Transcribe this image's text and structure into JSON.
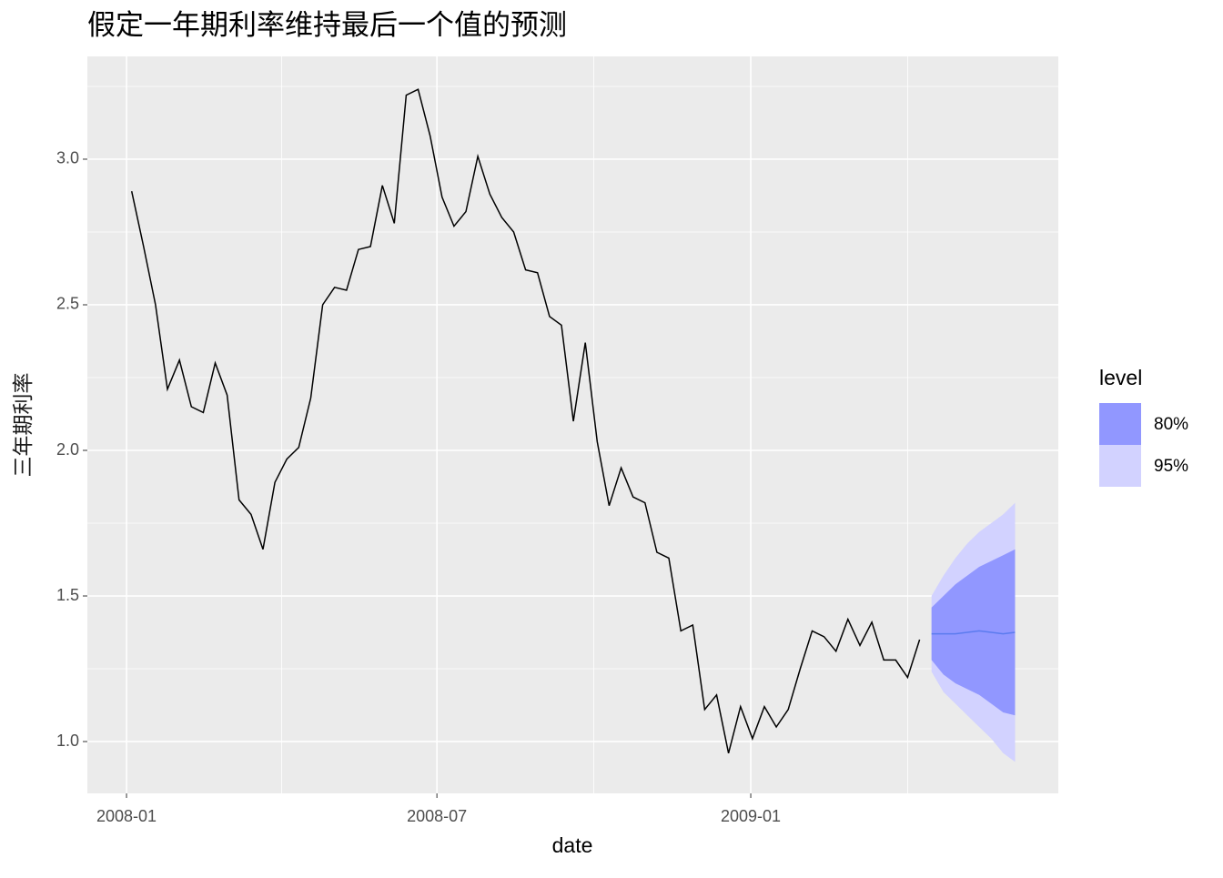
{
  "chart_data": {
    "type": "line",
    "title": "假定一年期利率维持最后一个值的预测",
    "x_label": "date",
    "y_label": "三年期利率",
    "legend_title": "level",
    "xlim": [
      -3.28,
      78.05
    ],
    "ylim": [
      0.822,
      3.353
    ],
    "xticks": [
      {
        "value": 0,
        "label": "2008-01"
      },
      {
        "value": 26,
        "label": "2008-07"
      },
      {
        "value": 52.29,
        "label": "2009-01"
      }
    ],
    "yticks": [
      {
        "value": 1,
        "label": "1.0"
      },
      {
        "value": 1.5,
        "label": "1.5"
      },
      {
        "value": 2,
        "label": "2.0"
      },
      {
        "value": 2.5,
        "label": "2.5"
      },
      {
        "value": 3,
        "label": "3.0"
      }
    ],
    "grid": true,
    "x": [
      0.43,
      1.43,
      2.43,
      3.43,
      4.43,
      5.43,
      6.43,
      7.43,
      8.43,
      9.43,
      10.43,
      11.43,
      12.43,
      13.43,
      14.43,
      15.43,
      16.43,
      17.43,
      18.43,
      19.43,
      20.43,
      21.43,
      22.43,
      23.43,
      24.43,
      25.43,
      26.43,
      27.43,
      28.43,
      29.43,
      30.43,
      31.43,
      32.43,
      33.43,
      34.43,
      35.43,
      36.43,
      37.43,
      38.43,
      39.43,
      40.43,
      41.43,
      42.43,
      43.43,
      44.43,
      45.43,
      46.43,
      47.43,
      48.43,
      49.43,
      50.43,
      51.43,
      52.43,
      53.43,
      54.43,
      55.43,
      56.43,
      57.43,
      58.43,
      59.43,
      60.43,
      61.43,
      62.43,
      63.43,
      64.43,
      65.43,
      66.43
    ],
    "series": [
      {
        "color": "#000000",
        "values": [
          2.89,
          2.7,
          2.5,
          2.21,
          2.31,
          2.15,
          2.13,
          2.3,
          2.19,
          1.83,
          1.78,
          1.66,
          1.89,
          1.97,
          2.01,
          2.18,
          2.5,
          2.56,
          2.55,
          2.69,
          2.7,
          2.91,
          2.78,
          3.22,
          3.24,
          3.08,
          2.87,
          2.77,
          2.82,
          3.01,
          2.88,
          2.8,
          2.75,
          2.62,
          2.61,
          2.46,
          2.43,
          2.1,
          2.37,
          2.03,
          1.81,
          1.94,
          1.84,
          1.82,
          1.65,
          1.63,
          1.38,
          1.4,
          1.11,
          1.16,
          0.96,
          1.12,
          1.01,
          1.12,
          1.05,
          1.11,
          1.25,
          1.38,
          1.36,
          1.31,
          1.42,
          1.33,
          1.41,
          1.28,
          1.28,
          1.22,
          1.35
        ]
      }
    ],
    "forecast": {
      "color": "#5b7bef",
      "x": [
        67.43,
        68.43,
        69.43,
        70.43,
        71.43,
        72.43,
        73.43,
        74.43
      ],
      "mean": [
        1.37,
        1.37,
        1.37,
        1.375,
        1.38,
        1.375,
        1.37,
        1.375
      ],
      "intervals": [
        {
          "name": "95%",
          "color": "#d2d2ff",
          "lower": [
            1.24,
            1.17,
            1.13,
            1.09,
            1.05,
            1.01,
            0.96,
            0.93
          ],
          "upper": [
            1.5,
            1.57,
            1.63,
            1.68,
            1.72,
            1.75,
            1.78,
            1.82
          ]
        },
        {
          "name": "80%",
          "color": "#9197ff",
          "lower": [
            1.28,
            1.23,
            1.2,
            1.18,
            1.16,
            1.13,
            1.1,
            1.09
          ],
          "upper": [
            1.46,
            1.5,
            1.54,
            1.57,
            1.6,
            1.62,
            1.64,
            1.66
          ]
        }
      ]
    }
  }
}
